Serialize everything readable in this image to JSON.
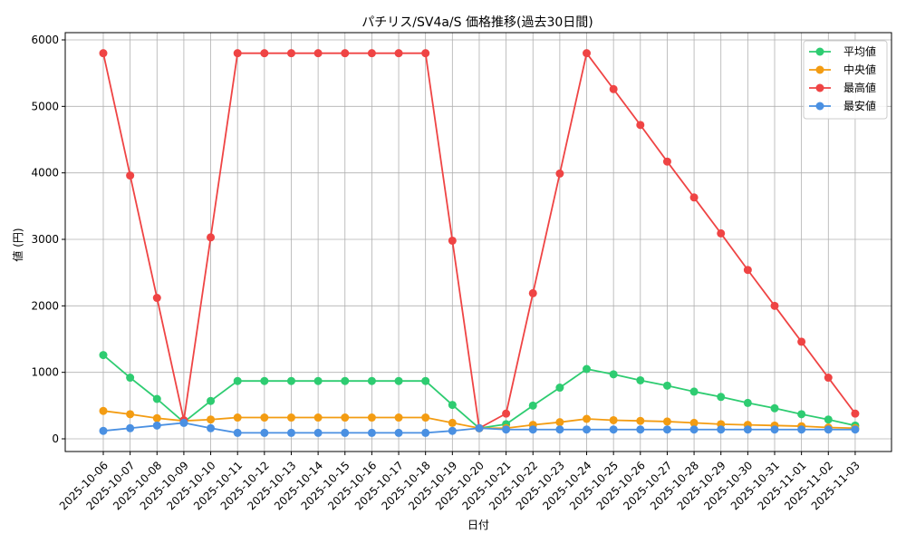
{
  "chart_data": {
    "type": "line",
    "title": "パチリス/SV4a/S 価格推移(過去30日間)",
    "xlabel": "日付",
    "ylabel": "値 (円)",
    "ylim": [
      0,
      6000
    ],
    "yticks": [
      0,
      1000,
      2000,
      3000,
      4000,
      5000,
      6000
    ],
    "grid": true,
    "legend_position": "top-right",
    "categories": [
      "2025-10-06",
      "2025-10-07",
      "2025-10-08",
      "2025-10-09",
      "2025-10-10",
      "2025-10-11",
      "2025-10-12",
      "2025-10-13",
      "2025-10-14",
      "2025-10-15",
      "2025-10-16",
      "2025-10-17",
      "2025-10-18",
      "2025-10-19",
      "2025-10-20",
      "2025-10-21",
      "2025-10-22",
      "2025-10-23",
      "2025-10-24",
      "2025-10-25",
      "2025-10-26",
      "2025-10-27",
      "2025-10-28",
      "2025-10-29",
      "2025-10-30",
      "2025-10-31",
      "2025-11-01",
      "2025-11-02",
      "2025-11-03"
    ],
    "series": [
      {
        "name": "平均値",
        "color": "#2ecc71",
        "values": [
          1260,
          920,
          600,
          250,
          570,
          870,
          870,
          870,
          870,
          870,
          870,
          870,
          870,
          510,
          160,
          220,
          500,
          770,
          1050,
          970,
          880,
          800,
          710,
          630,
          540,
          460,
          370,
          290,
          200
        ]
      },
      {
        "name": "中央値",
        "color": "#f39c12",
        "values": [
          420,
          370,
          310,
          270,
          290,
          320,
          320,
          320,
          320,
          320,
          320,
          320,
          320,
          240,
          160,
          160,
          210,
          250,
          300,
          280,
          270,
          260,
          240,
          220,
          210,
          200,
          190,
          170,
          160
        ]
      },
      {
        "name": "最高値",
        "color": "#ef4444",
        "values": [
          5800,
          3960,
          2120,
          280,
          3030,
          5800,
          5800,
          5800,
          5800,
          5800,
          5800,
          5800,
          5800,
          2980,
          160,
          380,
          2190,
          3990,
          5800,
          5260,
          4720,
          4170,
          3630,
          3090,
          2540,
          2000,
          1460,
          920,
          380
        ]
      },
      {
        "name": "最安値",
        "color": "#4a90e2",
        "values": [
          120,
          160,
          200,
          240,
          160,
          90,
          90,
          90,
          90,
          90,
          90,
          90,
          90,
          120,
          160,
          140,
          140,
          140,
          140,
          140,
          140,
          140,
          140,
          140,
          140,
          140,
          140,
          140,
          140
        ]
      }
    ]
  }
}
